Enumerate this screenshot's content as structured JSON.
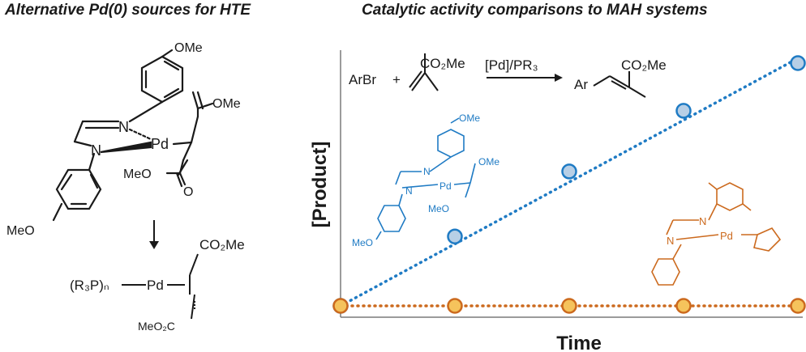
{
  "left_panel": {
    "title": "Alternative Pd(0) sources for HTE",
    "complex_labels": {
      "methoxy_top": "OMe",
      "n1": "N",
      "n2": "N",
      "pd": "Pd",
      "ester_top": "OMe",
      "ester_bottom": "MeO",
      "carbonyl_o": "O",
      "methoxy_bottom": "MeO"
    },
    "product_labels": {
      "ligand": "(R₃P)ₙ",
      "pd": "Pd",
      "ester_top": "CO₂Me",
      "ester_bottom": "MeO₂C"
    }
  },
  "right_panel": {
    "title": "Catalytic activity comparisons to MAH systems",
    "reaction": {
      "reactant": "ArBr",
      "plus": "+",
      "ester": "CO₂Me",
      "conditions": "[Pd]/PR₃",
      "product_ar": "Ar",
      "product_ester": "CO₂Me"
    },
    "blue_complex_labels": {
      "methoxy_top": "OMe",
      "n1": "N",
      "n2": "N",
      "pd": "Pd",
      "ester_top": "OMe",
      "ester_bottom": "MeO",
      "methoxy_bottom": "MeO"
    },
    "orange_complex_labels": {
      "n1": "N",
      "n2": "N",
      "pd": "Pd"
    }
  },
  "colors": {
    "blue": "#1f7bc4",
    "blue_fill": "#b7cfe6",
    "orange": "#cc6a1e",
    "orange_fill": "#f5c35c",
    "black": "#1a1a1a"
  },
  "chart_data": {
    "type": "scatter",
    "xlabel": "Time",
    "ylabel": "[Product]",
    "series": [
      {
        "color": "blue",
        "x": [
          0,
          1,
          2,
          3,
          4
        ],
        "y": [
          0,
          0.32,
          0.62,
          0.9,
          1.12
        ],
        "trend": "dotted-line"
      },
      {
        "color": "orange",
        "x": [
          0,
          1,
          2,
          3,
          4
        ],
        "y": [
          0,
          0,
          0,
          0,
          0
        ],
        "trend": "dotted-line"
      }
    ],
    "grid": false,
    "legend": "none"
  }
}
